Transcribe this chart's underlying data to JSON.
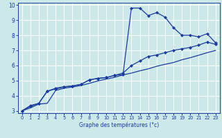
{
  "xlabel": "Graphe des températures (°c)",
  "bg_color": "#cce8e8",
  "grid_color": "#ffffff",
  "line_color": "#1a3a9c",
  "xlim": [
    -0.5,
    23.5
  ],
  "ylim": [
    2.85,
    10.15
  ],
  "xticks": [
    0,
    1,
    2,
    3,
    4,
    5,
    6,
    7,
    8,
    9,
    10,
    11,
    12,
    13,
    14,
    15,
    16,
    17,
    18,
    19,
    20,
    21,
    22,
    23
  ],
  "yticks": [
    3,
    4,
    5,
    6,
    7,
    8,
    9,
    10
  ],
  "line1_x": [
    0,
    1,
    2,
    3,
    4,
    5,
    6,
    7,
    8,
    9,
    10,
    11,
    12,
    13,
    14,
    15,
    16,
    17,
    18,
    19,
    20,
    21,
    22,
    23
  ],
  "line1_y": [
    3.0,
    3.35,
    3.5,
    4.3,
    4.5,
    4.6,
    4.65,
    4.75,
    5.05,
    5.15,
    5.2,
    5.35,
    5.4,
    9.8,
    9.8,
    9.3,
    9.5,
    9.2,
    8.5,
    8.0,
    8.0,
    7.9,
    8.1,
    7.5
  ],
  "line2_x": [
    0,
    1,
    2,
    3,
    4,
    5,
    6,
    7,
    8,
    9,
    10,
    11,
    12,
    13,
    14,
    15,
    16,
    17,
    18,
    19,
    20,
    21,
    22,
    23
  ],
  "line2_y": [
    3.0,
    3.3,
    3.5,
    4.3,
    4.45,
    4.58,
    4.65,
    4.75,
    5.05,
    5.15,
    5.2,
    5.35,
    5.5,
    6.0,
    6.3,
    6.6,
    6.7,
    6.85,
    7.0,
    7.1,
    7.2,
    7.35,
    7.55,
    7.4
  ],
  "line3_x": [
    0,
    1,
    2,
    3,
    4,
    5,
    6,
    7,
    8,
    9,
    10,
    11,
    12,
    13,
    14,
    15,
    16,
    17,
    18,
    19,
    20,
    21,
    22,
    23
  ],
  "line3_y": [
    3.0,
    3.2,
    3.45,
    3.5,
    4.35,
    4.5,
    4.58,
    4.68,
    4.82,
    4.98,
    5.1,
    5.22,
    5.38,
    5.5,
    5.65,
    5.78,
    5.95,
    6.08,
    6.2,
    6.38,
    6.52,
    6.68,
    6.85,
    7.0
  ]
}
